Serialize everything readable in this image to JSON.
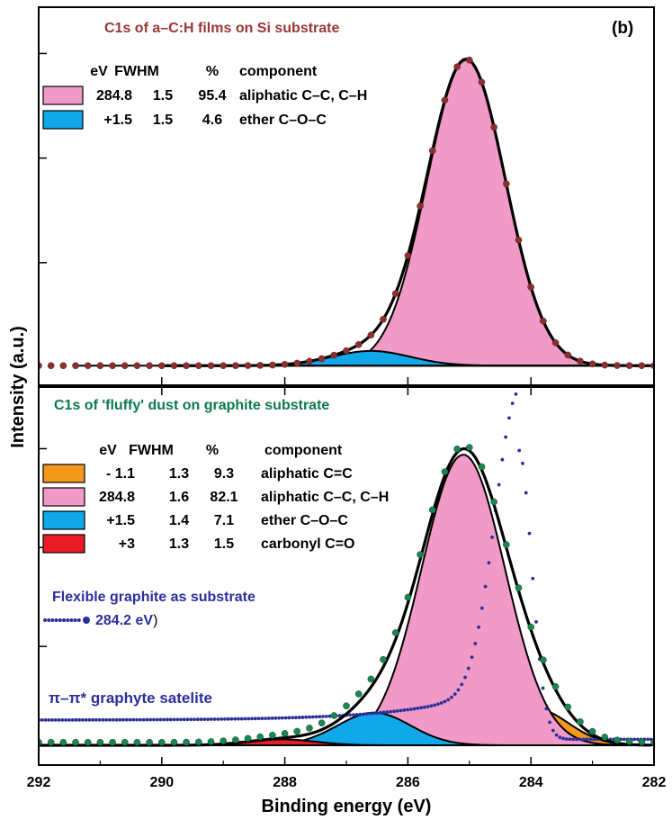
{
  "figure": {
    "ylabel": "Intensity (a.u.)",
    "xlabel": "Binding energy (eV)",
    "panel_label": "(b)",
    "xticks": [
      "292",
      "290",
      "288",
      "286",
      "284",
      "282"
    ]
  },
  "chart_data": [
    {
      "type": "area",
      "title": "C1s of  a–C:H films on Si substrate",
      "xlabel": "Binding energy (eV)",
      "ylabel": "Intensity (a.u.)",
      "xlim": [
        292,
        282
      ],
      "ylim": [
        0,
        1.05
      ],
      "title_color": "#9b3535",
      "table_header": [
        "eV",
        "FWHM",
        "%",
        "component"
      ],
      "components": [
        {
          "eV": "284.8",
          "fwhm": "1.5",
          "pct": "95.4",
          "name": "aliphatic C–C, C–H",
          "color": "#f29ac7",
          "center": 285.05,
          "width": 1.5,
          "height": 0.975
        },
        {
          "eV": "+1.5",
          "fwhm": "1.5",
          "pct": "4.6",
          "name": "ether C–O–C",
          "color": "#10a8e8",
          "center": 286.6,
          "width": 1.5,
          "height": 0.047
        }
      ],
      "baseline": 0.005,
      "fit_range": [
        290,
        282
      ],
      "data_range": [
        292,
        282
      ],
      "data_step": 0.2,
      "data_color": "#8f2e2e"
    },
    {
      "type": "area",
      "title": "C1s of 'fluffy' dust on graphite substrate",
      "xlabel": "Binding energy (eV)",
      "ylabel": "Intensity (a.u.)",
      "xlim": [
        292,
        282
      ],
      "ylim": [
        0,
        1.05
      ],
      "title_color": "#0d7a4a",
      "table_header": [
        "eV",
        "FWHM",
        "%",
        "component"
      ],
      "components": [
        {
          "eV": "- 1.1",
          "fwhm": "1.3",
          "pct": "9.3",
          "name": "aliphatic C=C",
          "color": "#f5981e",
          "center": 283.95,
          "width": 1.3,
          "height": 0.125
        },
        {
          "eV": "284.8",
          "fwhm": "1.6",
          "pct": "82.1",
          "name": "aliphatic C–C, C–H",
          "color": "#f29ac7",
          "center": 285.1,
          "width": 1.6,
          "height": 0.98
        },
        {
          "eV": "+1.5",
          "fwhm": "1.4",
          "pct": "7.1",
          "name": "ether C–O–C",
          "color": "#10a8e8",
          "center": 286.55,
          "width": 1.4,
          "height": 0.11
        },
        {
          "eV": "+3",
          "fwhm": "1.3",
          "pct": "1.5",
          "name": "carbonyl C=O",
          "color": "#e81c24",
          "center": 288.05,
          "width": 1.3,
          "height": 0.02
        }
      ],
      "baseline": 0.0,
      "fit_range": [
        292,
        282
      ],
      "data_range": [
        292,
        282
      ],
      "data_step": 0.2,
      "data_color": "#128a50",
      "reference": {
        "name": "Flexible graphite as substrate",
        "value_label": "284.2 eV",
        "color": "#2b2f9c",
        "peak_center": 284.2,
        "peak_height": 0.975,
        "left_width": 0.9,
        "right_width": 0.5,
        "tail_level": 0.085,
        "annotation": "π–π* graphyte satelite"
      }
    }
  ]
}
